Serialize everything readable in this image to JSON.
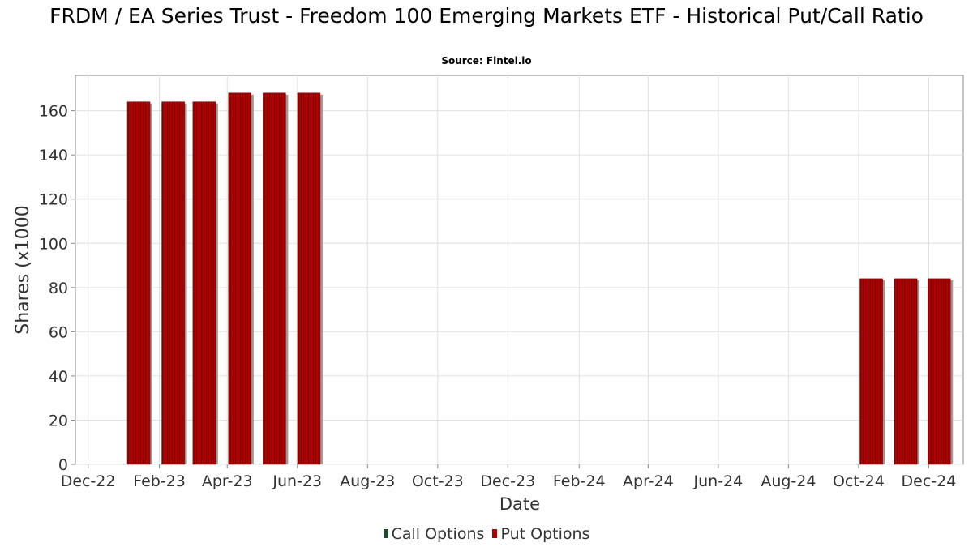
{
  "title": "FRDM / EA Series Trust - Freedom 100 Emerging Markets ETF - Historical Put/Call Ratio",
  "subtitle": "Source: Fintel.io",
  "colors": {
    "call": "#1a4d2e",
    "put": "#b00000",
    "bar_shadow": "#999999",
    "grid": "#e0e0e0"
  },
  "chart_data": {
    "type": "bar",
    "title": "FRDM / EA Series Trust - Freedom 100 Emerging Markets ETF - Historical Put/Call Ratio",
    "xlabel": "Date",
    "ylabel": "Shares (x1000",
    "ylim": [
      0,
      176
    ],
    "yticks": [
      0,
      20,
      40,
      60,
      80,
      100,
      120,
      140,
      160
    ],
    "xlim": [
      "2022-11-20",
      "2024-12-31"
    ],
    "xticks": [
      {
        "date": "2022-12-01",
        "label": "Dec-22"
      },
      {
        "date": "2023-02-01",
        "label": "Feb-23"
      },
      {
        "date": "2023-04-01",
        "label": "Apr-23"
      },
      {
        "date": "2023-06-01",
        "label": "Jun-23"
      },
      {
        "date": "2023-08-01",
        "label": "Aug-23"
      },
      {
        "date": "2023-10-01",
        "label": "Oct-23"
      },
      {
        "date": "2023-12-01",
        "label": "Dec-23"
      },
      {
        "date": "2024-02-01",
        "label": "Feb-24"
      },
      {
        "date": "2024-04-01",
        "label": "Apr-24"
      },
      {
        "date": "2024-06-01",
        "label": "Jun-24"
      },
      {
        "date": "2024-08-01",
        "label": "Aug-24"
      },
      {
        "date": "2024-10-01",
        "label": "Oct-24"
      },
      {
        "date": "2024-12-01",
        "label": "Dec-24"
      }
    ],
    "grid": true,
    "legend_position": "bottom-center",
    "series": [
      {
        "name": "Call Options",
        "color": "#1a4d2e",
        "points": []
      },
      {
        "name": "Put Options",
        "color": "#b00000",
        "points": [
          {
            "date": "2023-01-14",
            "value": 164
          },
          {
            "date": "2023-02-13",
            "value": 164
          },
          {
            "date": "2023-03-12",
            "value": 164
          },
          {
            "date": "2023-04-12",
            "value": 168
          },
          {
            "date": "2023-05-12",
            "value": 168
          },
          {
            "date": "2023-06-11",
            "value": 168
          },
          {
            "date": "2024-10-12",
            "value": 84
          },
          {
            "date": "2024-11-11",
            "value": 84
          },
          {
            "date": "2024-12-10",
            "value": 84
          }
        ]
      }
    ]
  }
}
